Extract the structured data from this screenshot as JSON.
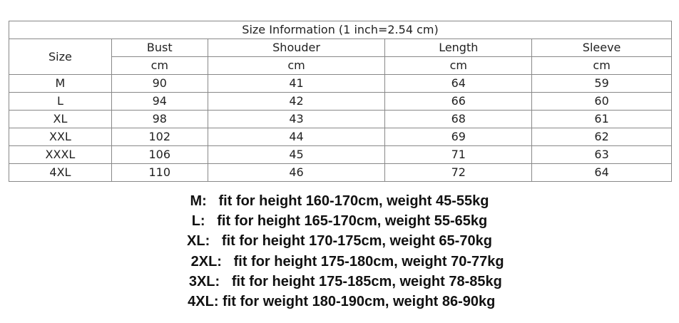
{
  "table": {
    "title": "Size Information (1 inch=2.54 cm)",
    "size_header": "Size",
    "columns": [
      "Bust",
      "Shouder",
      "Length",
      "Sleeve"
    ],
    "units": [
      "cm",
      "cm",
      "cm",
      "cm"
    ],
    "rows": [
      {
        "size": "M",
        "values": [
          "90",
          "41",
          "64",
          "59"
        ]
      },
      {
        "size": "L",
        "values": [
          "94",
          "42",
          "66",
          "60"
        ]
      },
      {
        "size": "XL",
        "values": [
          "98",
          "43",
          "68",
          "61"
        ]
      },
      {
        "size": "XXL",
        "values": [
          "102",
          "44",
          "69",
          "62"
        ]
      },
      {
        "size": "XXXL",
        "values": [
          "106",
          "45",
          "71",
          "63"
        ]
      },
      {
        "size": "4XL",
        "values": [
          "110",
          "46",
          "72",
          "64"
        ]
      }
    ]
  },
  "fit_notes": [
    "M:   fit for height 160-170cm, weight 45-55kg",
    "L:   fit for height 165-170cm, weight 55-65kg",
    "XL:   fit for height 170-175cm, weight 65-70kg",
    "    2XL:   fit for height 175-180cm, weight 70-77kg",
    "   3XL:   fit for height 175-185cm, weight 78-85kg",
    " 4XL: fit for weight 180-190cm, weight 86-90kg"
  ]
}
